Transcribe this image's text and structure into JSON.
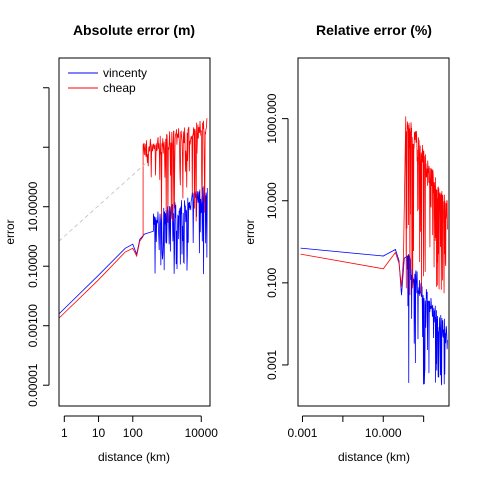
{
  "colors": {
    "vincenty": "#0000ff",
    "cheap": "#ff0000",
    "reference": "#bfbfbf"
  },
  "chart_data": [
    {
      "type": "line",
      "title": "Absolute error (m)",
      "xlabel": "distance (km)",
      "ylabel": "error",
      "x_scale": "log",
      "y_scale": "log",
      "xlim": [
        0.7,
        18000
      ],
      "ylim": [
        2e-06,
        1000000
      ],
      "x_ticks": [
        {
          "value": 1,
          "label": "1"
        },
        {
          "value": 10,
          "label": "10"
        },
        {
          "value": 100,
          "label": "100"
        },
        {
          "value": 10000,
          "label": "10000"
        }
      ],
      "y_ticks": [
        {
          "value": 1e-05,
          "label": "0.00001"
        },
        {
          "value": 0.001,
          "label": "0.00100"
        },
        {
          "value": 0.1,
          "label": "0.10000"
        },
        {
          "value": 10,
          "label": "10.00000"
        },
        {
          "value": 1000,
          "label": ""
        },
        {
          "value": 100000,
          "label": ""
        }
      ],
      "legend": {
        "placement": "top-left",
        "entries": [
          {
            "name": "vincenty",
            "color": "#0000ff"
          },
          {
            "name": "cheap",
            "color": "#ff0000"
          }
        ]
      },
      "series": [
        {
          "name": "vincenty",
          "color": "#0000ff",
          "smooth": [
            [
              0.7,
              0.0025
            ],
            [
              10,
              0.05
            ],
            [
              60,
              0.4
            ],
            [
              100,
              0.55
            ],
            [
              130,
              0.25
            ],
            [
              160,
              0.8
            ],
            [
              220,
              1.2
            ],
            [
              400,
              1.5
            ]
          ],
          "noisy": {
            "x_start": 400,
            "x_end": 15000,
            "y_start": 3,
            "y_end": 30,
            "dip_min": 0.05,
            "count": 130
          }
        },
        {
          "name": "cheap",
          "color": "#ff0000",
          "smooth": [
            [
              0.7,
              0.0018
            ],
            [
              10,
              0.035
            ],
            [
              60,
              0.3
            ],
            [
              100,
              0.4
            ],
            [
              130,
              0.22
            ],
            [
              160,
              0.7
            ],
            [
              200,
              1.0
            ]
          ],
          "noisy": {
            "x_start": 200,
            "x_end": 15000,
            "y_start": 800,
            "y_end": 5000,
            "dip_min": 2,
            "count": 150
          }
        },
        {
          "name": "reference",
          "color": "#bfbfbf",
          "dashed": true,
          "points": [
            [
              0.7,
              0.7
            ],
            [
              250,
              300
            ]
          ]
        }
      ]
    },
    {
      "type": "line",
      "title": "Relative error (%)",
      "xlabel": "distance (km)",
      "ylabel": "error",
      "x_scale": "log",
      "y_scale": "log",
      "xlim": [
        0.0006,
        18000
      ],
      "ylim": [
        0.0001,
        30000
      ],
      "x_ticks": [
        {
          "value": 0.001,
          "label": "0.001"
        },
        {
          "value": 0.1,
          "label": ""
        },
        {
          "value": 10,
          "label": "10.000"
        },
        {
          "value": 1000,
          "label": ""
        }
      ],
      "y_ticks": [
        {
          "value": 0.001,
          "label": "0.001"
        },
        {
          "value": 0.1,
          "label": "0.100"
        },
        {
          "value": 10,
          "label": "10.000"
        },
        {
          "value": 1000,
          "label": "1000.000"
        }
      ],
      "series": [
        {
          "name": "vincenty",
          "color": "#0000ff",
          "smooth": [
            [
              0.0008,
              0.7
            ],
            [
              10,
              0.45
            ],
            [
              40,
              0.65
            ],
            [
              60,
              0.35
            ],
            [
              80,
              0.05
            ],
            [
              110,
              0.4
            ]
          ],
          "noisy": {
            "x_start": 150,
            "x_end": 15000,
            "y_start": 0.3,
            "y_end": 0.005,
            "dip_min": 0.0003,
            "count": 140
          }
        },
        {
          "name": "cheap",
          "color": "#ff0000",
          "smooth": [
            [
              0.0008,
              0.5
            ],
            [
              10,
              0.22
            ],
            [
              40,
              0.55
            ],
            [
              60,
              0.3
            ],
            [
              80,
              0.08
            ],
            [
              100,
              0.4
            ]
          ],
          "noisy": {
            "x_start": 130,
            "x_end": 15000,
            "y_start": 1000,
            "y_end": 5,
            "dip_min": 0.05,
            "count": 150
          }
        }
      ]
    }
  ]
}
